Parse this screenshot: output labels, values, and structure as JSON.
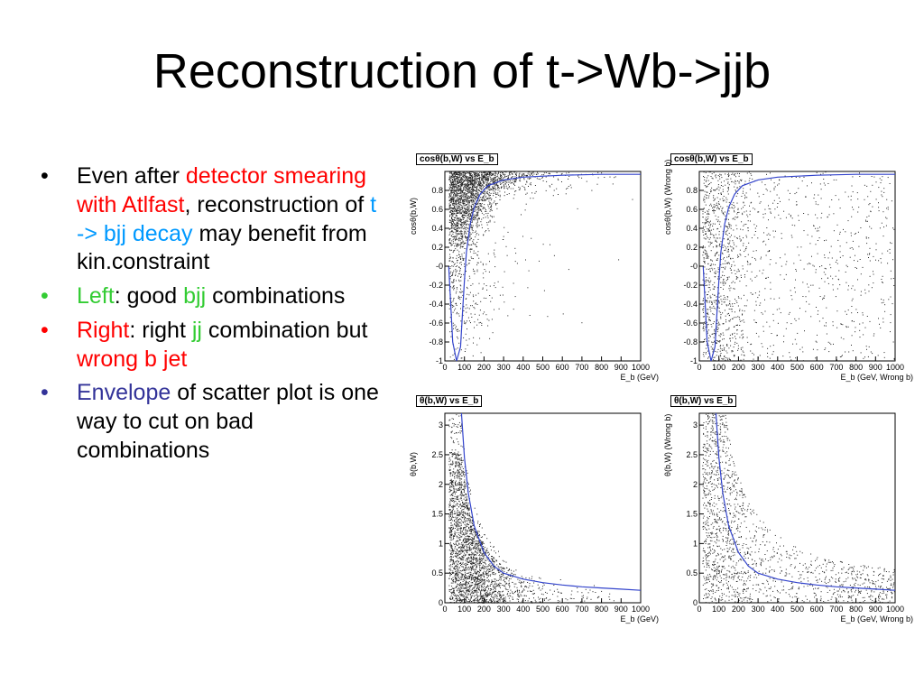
{
  "slide": {
    "title": "Reconstruction of t->Wb->jjb"
  },
  "bullets": [
    {
      "parts": [
        {
          "text": "Even after ",
          "color": "black"
        },
        {
          "text": "detector smearing with Atlfast",
          "color": "red"
        },
        {
          "text": ", reconstruction of ",
          "color": "black"
        },
        {
          "text": "t -> bjj decay",
          "color": "blue"
        },
        {
          "text": " may benefit from kin.constraint",
          "color": "black"
        }
      ],
      "bullet_color": "black"
    },
    {
      "parts": [
        {
          "text": "Left",
          "color": "green"
        },
        {
          "text": ": good ",
          "color": "black"
        },
        {
          "text": "bjj",
          "color": "green"
        },
        {
          "text": " combinations",
          "color": "black"
        }
      ],
      "bullet_color": "green"
    },
    {
      "parts": [
        {
          "text": "Right",
          "color": "red"
        },
        {
          "text": ": right ",
          "color": "black"
        },
        {
          "text": "jj",
          "color": "green"
        },
        {
          "text": " combination but ",
          "color": "black"
        },
        {
          "text": "wrong b jet",
          "color": "red"
        }
      ],
      "bullet_color": "red"
    },
    {
      "parts": [
        {
          "text": "Envelope",
          "color": "navy"
        },
        {
          "text": " of scatter plot is one way to cut on bad combinations",
          "color": "black"
        }
      ],
      "bullet_color": "navy"
    }
  ],
  "bullet_char": "•",
  "colors": {
    "envelope_curve": "#3344cc",
    "points": "#222222",
    "bullet_text": "#000000"
  },
  "chart_data": [
    {
      "type": "scatter",
      "title": "cosθ(b,W) vs E_b",
      "xlabel": "E_b (GeV)",
      "ylabel": "cosθ(b,W)",
      "xlim": [
        0,
        1000
      ],
      "ylim": [
        -1,
        1
      ],
      "x_ticks": [
        0,
        100,
        200,
        300,
        400,
        500,
        600,
        700,
        800,
        900,
        1000
      ],
      "y_ticks": [
        -1,
        -0.8,
        -0.6,
        -0.4,
        -0.2,
        0,
        0.2,
        0.4,
        0.6,
        0.8
      ],
      "y_tick_labels": [
        "-1",
        "-0.8",
        "-0.6",
        "-0.4",
        "-0.2",
        "-0",
        "0.2",
        "0.4",
        "0.6",
        "0.8"
      ],
      "density": "good",
      "envelope": {
        "x": [
          20,
          40,
          60,
          80,
          90,
          100,
          110,
          130,
          150,
          180,
          220,
          300,
          400,
          600,
          800,
          1000
        ],
        "y": [
          0.0,
          -0.8,
          -1.0,
          -0.85,
          -0.5,
          -0.15,
          0.15,
          0.45,
          0.62,
          0.76,
          0.85,
          0.91,
          0.94,
          0.96,
          0.97,
          0.97
        ]
      }
    },
    {
      "type": "scatter",
      "title": "cosθ(b,W) vs E_b",
      "xlabel": "E_b (GeV, Wrong b)",
      "ylabel": "cosθ(b,W) (Wrong b)",
      "xlim": [
        0,
        1000
      ],
      "ylim": [
        -1,
        1
      ],
      "x_ticks": [
        0,
        100,
        200,
        300,
        400,
        500,
        600,
        700,
        800,
        900,
        1000
      ],
      "y_ticks": [
        -1,
        -0.8,
        -0.6,
        -0.4,
        -0.2,
        0,
        0.2,
        0.4,
        0.6,
        0.8
      ],
      "y_tick_labels": [
        "-1",
        "-0.8",
        "-0.6",
        "-0.4",
        "-0.2",
        "-0",
        "0.2",
        "0.4",
        "0.6",
        "0.8"
      ],
      "density": "wrong",
      "envelope": {
        "x": [
          20,
          40,
          60,
          80,
          90,
          100,
          110,
          130,
          150,
          180,
          220,
          300,
          400,
          600,
          800,
          1000
        ],
        "y": [
          0.0,
          -0.8,
          -1.0,
          -0.85,
          -0.5,
          -0.15,
          0.15,
          0.45,
          0.62,
          0.76,
          0.85,
          0.91,
          0.94,
          0.96,
          0.97,
          0.97
        ]
      }
    },
    {
      "type": "scatter",
      "title": "θ(b,W) vs E_b",
      "xlabel": "E_b (GeV)",
      "ylabel": "θ(b,W)",
      "xlim": [
        0,
        1000
      ],
      "ylim": [
        0,
        3.2
      ],
      "x_ticks": [
        0,
        100,
        200,
        300,
        400,
        500,
        600,
        700,
        800,
        900,
        1000
      ],
      "y_ticks": [
        0,
        0.5,
        1,
        1.5,
        2,
        2.5,
        3
      ],
      "y_tick_labels": [
        "0",
        "0.5",
        "1",
        "1.5",
        "2",
        "2.5",
        "3"
      ],
      "density": "good",
      "envelope": {
        "x": [
          85,
          100,
          120,
          150,
          200,
          250,
          300,
          400,
          500,
          600,
          700,
          800,
          900,
          1000
        ],
        "y": [
          3.2,
          2.45,
          1.85,
          1.3,
          0.85,
          0.62,
          0.5,
          0.4,
          0.34,
          0.3,
          0.27,
          0.25,
          0.23,
          0.21
        ]
      }
    },
    {
      "type": "scatter",
      "title": "θ(b,W) vs E_b",
      "xlabel": "E_b (GeV, Wrong b)",
      "ylabel": "θ(b,W) (Wrong b)",
      "xlim": [
        0,
        1000
      ],
      "ylim": [
        0,
        3.2
      ],
      "x_ticks": [
        0,
        100,
        200,
        300,
        400,
        500,
        600,
        700,
        800,
        900,
        1000
      ],
      "y_ticks": [
        0,
        0.5,
        1,
        1.5,
        2,
        2.5,
        3
      ],
      "y_tick_labels": [
        "0",
        "0.5",
        "1",
        "1.5",
        "2",
        "2.5",
        "3"
      ],
      "density": "wrong",
      "envelope": {
        "x": [
          85,
          100,
          120,
          150,
          200,
          250,
          300,
          400,
          500,
          600,
          700,
          800,
          900,
          1000
        ],
        "y": [
          3.2,
          2.45,
          1.85,
          1.3,
          0.85,
          0.62,
          0.5,
          0.4,
          0.34,
          0.3,
          0.27,
          0.25,
          0.23,
          0.21
        ]
      }
    }
  ]
}
